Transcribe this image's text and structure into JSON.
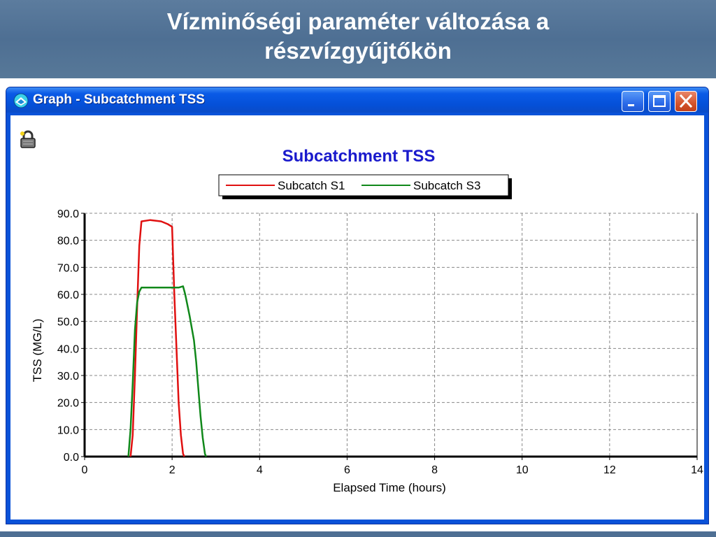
{
  "slide": {
    "title_line1": "Vízminőségi paraméter változása a",
    "title_line2": "részvízgyűjtőkön"
  },
  "window": {
    "title": "Graph - Subcatchment TSS",
    "buttons": [
      "minimize",
      "maximize",
      "close"
    ],
    "icons": [
      "app-icon",
      "lock-icon"
    ]
  },
  "colors": {
    "header_bg": "#4e6f93",
    "window_frame": "#0a52d8",
    "chart_title": "#1a1acc",
    "series_s1": "#e01010",
    "series_s3": "#10881a"
  },
  "chart_data": {
    "type": "line",
    "title": "Subcatchment TSS",
    "xlabel": "Elapsed Time (hours)",
    "ylabel": "TSS (MG/L)",
    "xlim": [
      0,
      14
    ],
    "ylim": [
      0,
      90
    ],
    "xticks": [
      "0",
      "2",
      "4",
      "6",
      "8",
      "10",
      "12",
      "14"
    ],
    "yticks": [
      "0.0",
      "10.0",
      "20.0",
      "30.0",
      "40.0",
      "50.0",
      "60.0",
      "70.0",
      "80.0",
      "90.0"
    ],
    "grid": true,
    "legend_position": "top-center",
    "series": [
      {
        "name": "Subcatch S1",
        "color": "#e01010",
        "x": [
          1.05,
          1.1,
          1.15,
          1.2,
          1.25,
          1.3,
          1.5,
          1.75,
          1.9,
          2.0,
          2.05,
          2.1,
          2.15,
          2.2,
          2.25,
          2.28
        ],
        "y": [
          0,
          8,
          30,
          55,
          78,
          87,
          87.5,
          87,
          86,
          85,
          60,
          40,
          20,
          8,
          1,
          0
        ]
      },
      {
        "name": "Subcatch S3",
        "color": "#10881a",
        "x": [
          1.0,
          1.05,
          1.1,
          1.15,
          1.2,
          1.25,
          1.3,
          1.6,
          1.9,
          2.15,
          2.25,
          2.3,
          2.4,
          2.5,
          2.55,
          2.6,
          2.65,
          2.7,
          2.75,
          2.78
        ],
        "y": [
          0,
          10,
          27,
          47,
          57,
          61,
          62.5,
          62.5,
          62.5,
          62.5,
          63,
          60,
          52,
          43,
          35,
          25,
          15,
          7,
          1,
          0
        ]
      }
    ]
  }
}
